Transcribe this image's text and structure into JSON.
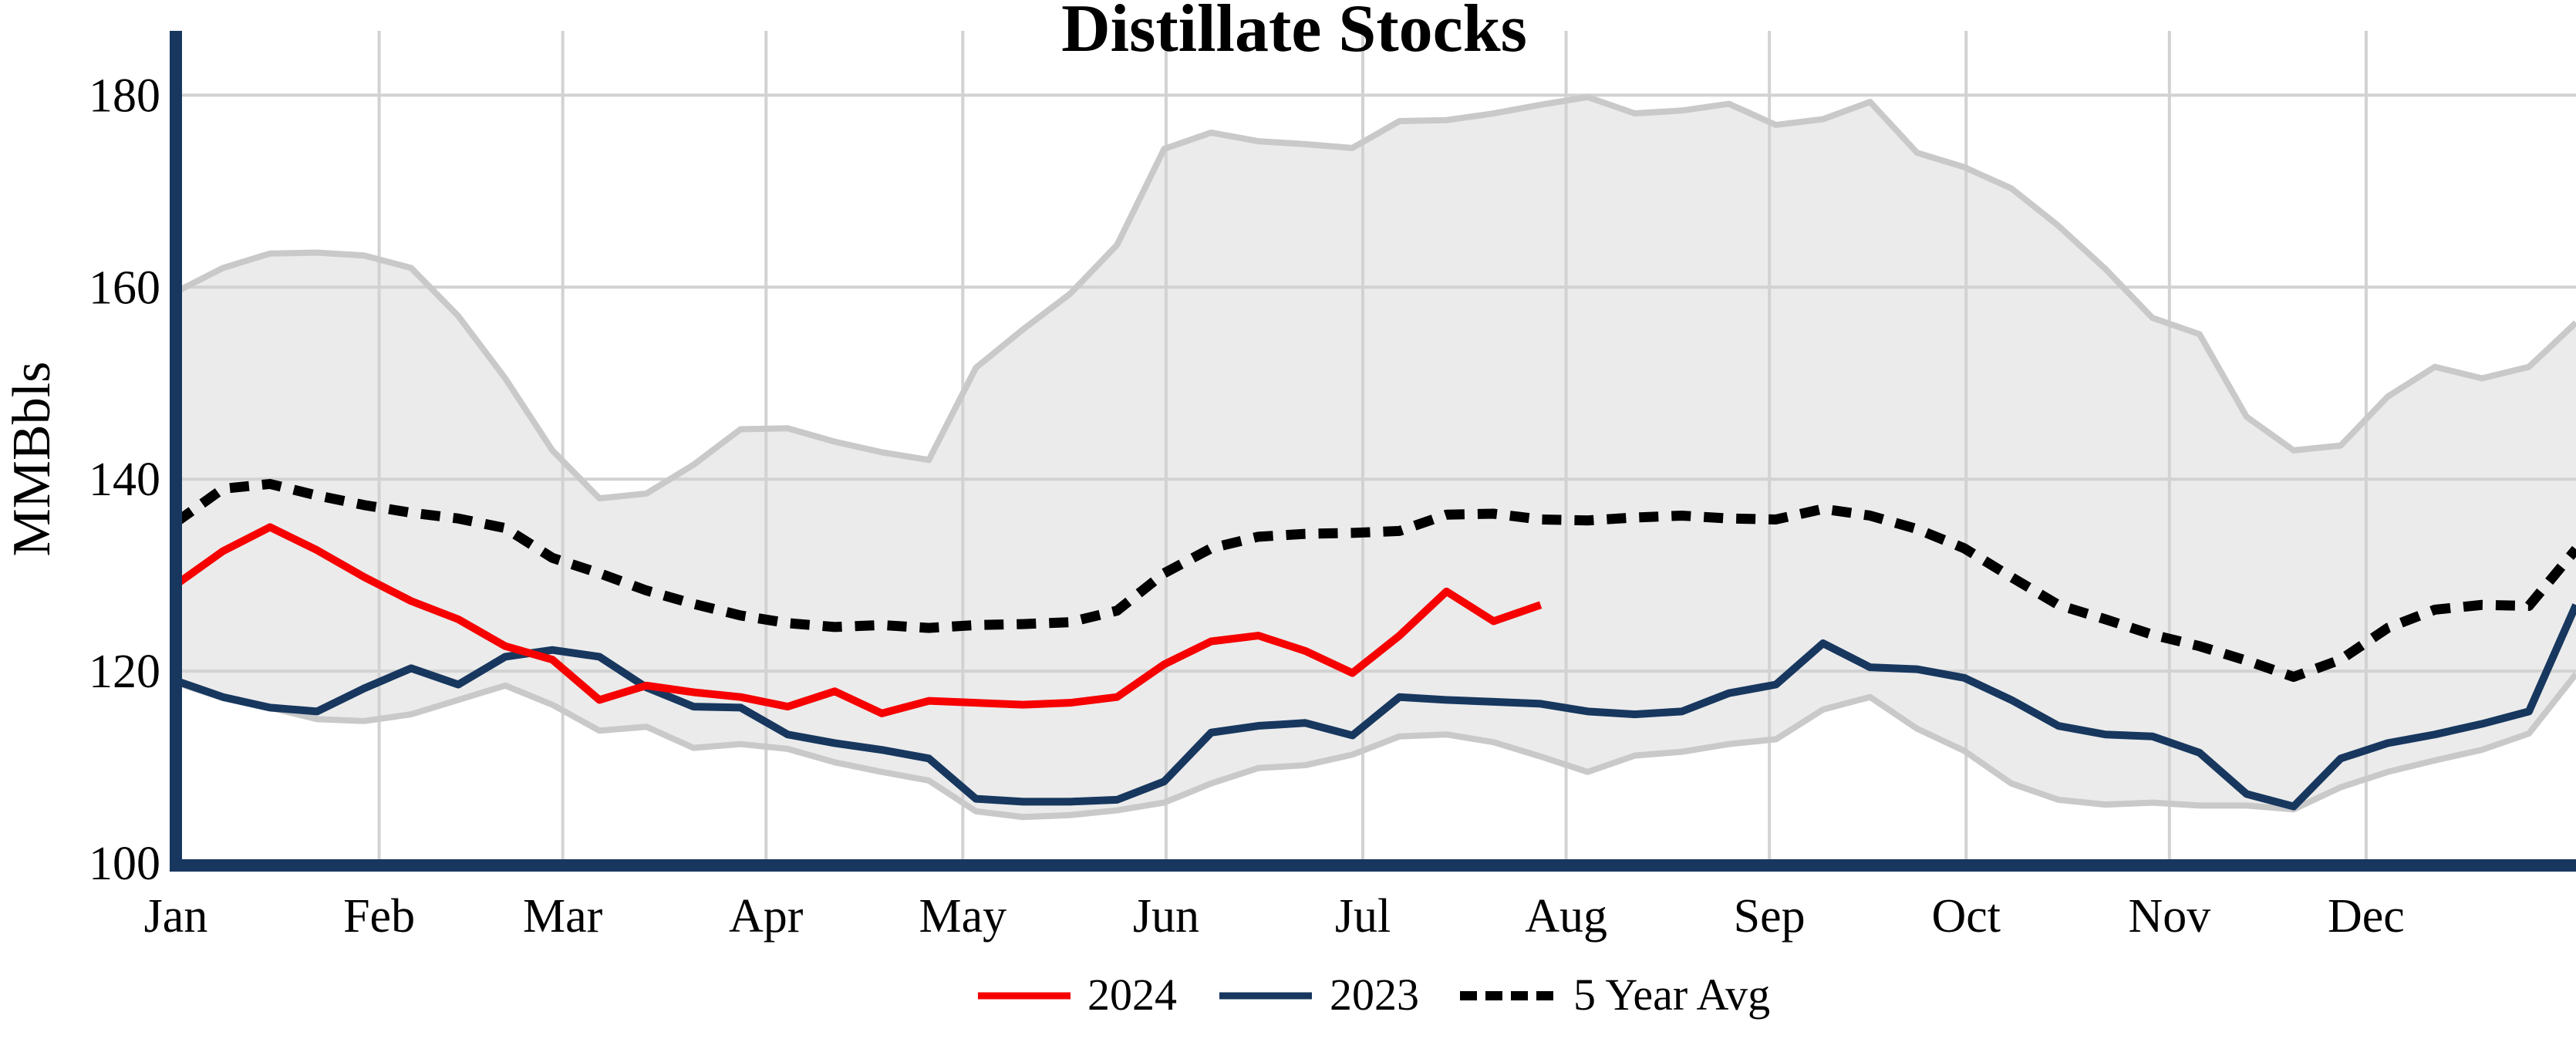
{
  "title": "Distillate Stocks",
  "y_axis": {
    "label": "MMBbls",
    "tick_labels": [
      "100",
      "120",
      "140",
      "160",
      "180"
    ]
  },
  "x_axis": {
    "month_labels": [
      "Jan",
      "Feb",
      "Mar",
      "Apr",
      "May",
      "Jun",
      "Jul",
      "Aug",
      "Sep",
      "Oct",
      "Nov",
      "Dec"
    ]
  },
  "legend": {
    "items": [
      {
        "label": "2024",
        "color": "#f60000",
        "style": "solid"
      },
      {
        "label": "2023",
        "color": "#17375e",
        "style": "solid"
      },
      {
        "label": "5 Year Avg",
        "color": "#000000",
        "style": "dotted"
      }
    ]
  },
  "chart_data": {
    "type": "line",
    "title": "Distillate Stocks",
    "xlabel": "",
    "ylabel": "MMBbls",
    "x_unit": "weekly observations, Jan through Dec (52 weeks; 2024 series ends in early August)",
    "ylim": [
      100,
      186.7
    ],
    "yticks": [
      100,
      120,
      140,
      160,
      180
    ],
    "grid": true,
    "legend_position": "bottom-center",
    "months": [
      "Jan",
      "Feb",
      "Mar",
      "Apr",
      "May",
      "Jun",
      "Jul",
      "Aug",
      "Sep",
      "Oct",
      "Nov",
      "Dec"
    ],
    "month_start_days": [
      0,
      31,
      59,
      90,
      120,
      151,
      181,
      212,
      243,
      273,
      304,
      334
    ],
    "series": [
      {
        "name": "2024",
        "color": "#f60000",
        "dashed": false,
        "values": [
          129.0,
          132.5,
          135.0,
          132.6,
          129.8,
          127.3,
          125.4,
          122.6,
          121.2,
          117.0,
          118.5,
          117.8,
          117.3,
          116.3,
          117.9,
          115.6,
          116.9,
          116.7,
          116.5,
          116.7,
          117.3,
          120.7,
          123.1,
          123.7,
          122.1,
          119.8,
          123.7,
          128.3,
          125.2,
          126.9
        ]
      },
      {
        "name": "2023",
        "color": "#17375e",
        "dashed": false,
        "values": [
          119.0,
          117.3,
          116.2,
          115.8,
          118.2,
          120.3,
          118.6,
          121.5,
          122.2,
          121.5,
          118.3,
          116.3,
          116.2,
          113.4,
          112.5,
          111.8,
          110.9,
          106.7,
          106.4,
          106.4,
          106.6,
          108.5,
          113.6,
          114.3,
          114.6,
          113.3,
          117.3,
          117.0,
          116.8,
          116.6,
          115.8,
          115.5,
          115.8,
          117.7,
          118.6,
          122.9,
          120.4,
          120.2,
          119.3,
          117.0,
          114.3,
          113.4,
          113.2,
          111.5,
          107.2,
          105.9,
          110.9,
          112.5,
          113.4,
          114.5,
          115.8,
          126.9
        ]
      },
      {
        "name": "5 Year Avg",
        "color": "#000000",
        "dashed": true,
        "values": [
          135.5,
          139.0,
          139.5,
          138.3,
          137.3,
          136.5,
          135.9,
          134.9,
          131.8,
          130.2,
          128.4,
          127.0,
          125.8,
          125.0,
          124.6,
          124.8,
          124.5,
          124.8,
          124.9,
          125.1,
          126.3,
          130.2,
          132.8,
          134.0,
          134.3,
          134.4,
          134.6,
          136.3,
          136.4,
          135.8,
          135.7,
          136.0,
          136.2,
          135.9,
          135.8,
          136.9,
          136.2,
          134.8,
          132.8,
          129.8,
          126.9,
          125.4,
          123.8,
          122.6,
          121.1,
          119.4,
          121.2,
          124.5,
          126.4,
          126.9,
          126.8,
          132.7
        ]
      }
    ],
    "band": {
      "name": "5-year min/max range",
      "fill": "#ebebeb",
      "edge": "#c9c9c9",
      "max": [
        159.5,
        162.0,
        163.5,
        163.6,
        163.3,
        162.0,
        157.0,
        150.5,
        143.0,
        138.0,
        138.5,
        141.5,
        145.2,
        145.3,
        143.9,
        142.8,
        142.0,
        151.6,
        155.6,
        159.3,
        164.4,
        174.4,
        176.1,
        175.2,
        174.9,
        174.5,
        177.3,
        177.4,
        178.1,
        179.0,
        179.8,
        178.1,
        178.4,
        179.1,
        176.9,
        177.5,
        179.3,
        174.0,
        172.5,
        170.3,
        166.4,
        161.9,
        156.8,
        155.1,
        146.5,
        143.0,
        143.5,
        148.6,
        151.7,
        150.5,
        151.7,
        156.3
      ],
      "min": [
        118.8,
        117.2,
        116.2,
        115.0,
        114.8,
        115.5,
        117.0,
        118.5,
        116.5,
        113.8,
        114.2,
        112.0,
        112.4,
        111.9,
        110.5,
        109.5,
        108.6,
        105.4,
        104.8,
        105.0,
        105.5,
        106.3,
        108.3,
        109.9,
        110.2,
        111.3,
        113.2,
        113.4,
        112.6,
        111.1,
        109.5,
        111.2,
        111.6,
        112.4,
        112.9,
        116.0,
        117.3,
        114.0,
        111.7,
        108.3,
        106.6,
        106.1,
        106.3,
        106.0,
        106.0,
        105.6,
        107.9,
        109.5,
        110.7,
        111.8,
        113.5,
        119.7
      ]
    },
    "colors": {
      "axis_spine": "#17375e",
      "gridline": "#d2d2d2",
      "band_fill": "#ebebeb",
      "band_edge": "#c9c9c9"
    }
  }
}
